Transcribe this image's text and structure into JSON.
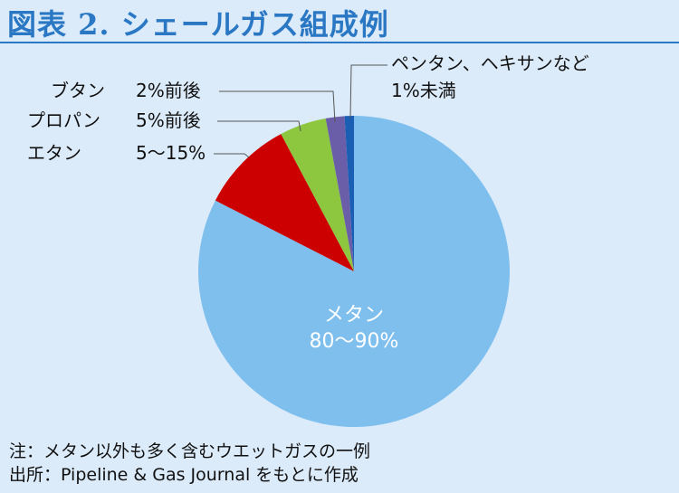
{
  "title": "図表 2. シェールガス組成例",
  "chart_data": {
    "type": "pie",
    "title": "図表 2. シェールガス組成例",
    "slices": [
      {
        "name": "メタン",
        "range": "80～90%",
        "value": 85,
        "color": "#7fbfee"
      },
      {
        "name": "エタン",
        "range": "5～15%",
        "value": 10,
        "color": "#cc0000"
      },
      {
        "name": "プロパン",
        "range": "5%前後",
        "value": 5,
        "color": "#8dc63f"
      },
      {
        "name": "ブタン",
        "range": "2%前後",
        "value": 2,
        "color": "#6b5ea8"
      },
      {
        "name": "ペンタン、ヘキサンなど",
        "range": "1%未満",
        "value": 1,
        "color": "#1a5fb4"
      }
    ]
  },
  "notes": {
    "note": "注：メタン以外も多く含むウエットガスの一例",
    "source": "出所：Pipeline & Gas Journal をもとに作成"
  }
}
